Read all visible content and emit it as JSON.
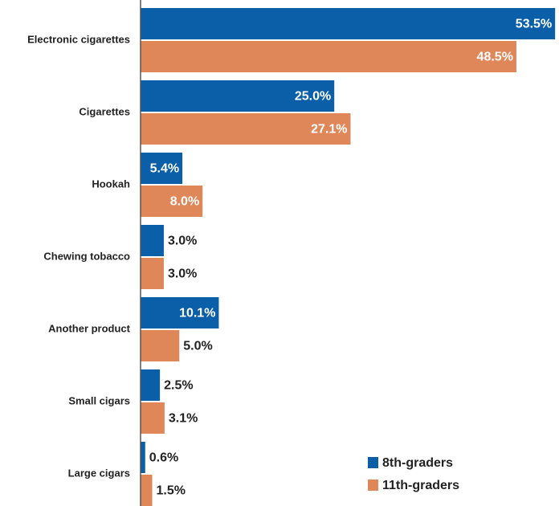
{
  "chart_data": {
    "type": "bar",
    "orientation": "horizontal",
    "categories": [
      "Electronic cigarettes",
      "Cigarettes",
      "Hookah",
      "Chewing tobacco",
      "Another product",
      "Small cigars",
      "Large cigars"
    ],
    "series": [
      {
        "name": "8th-graders",
        "color": "#0a5fa8",
        "values": [
          53.5,
          25.0,
          5.4,
          3.0,
          10.1,
          2.5,
          0.6
        ],
        "value_labels": [
          "53.5%",
          "25.0%",
          "5.4%",
          "3.0%",
          "10.1%",
          "2.5%",
          "0.6%"
        ]
      },
      {
        "name": "11th-graders",
        "color": "#e0875a",
        "values": [
          48.5,
          27.1,
          8.0,
          3.0,
          5.0,
          3.1,
          1.5
        ],
        "value_labels": [
          "48.5%",
          "27.1%",
          "8.0%",
          "3.0%",
          "5.0%",
          "3.1%",
          "1.5%"
        ]
      }
    ],
    "xlim": [
      0,
      54
    ],
    "legend": "lower right"
  }
}
